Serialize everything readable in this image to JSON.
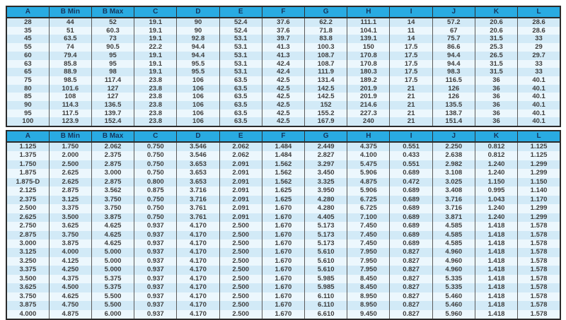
{
  "colors": {
    "header_bg": "#29abe2",
    "header_text": "#16365c",
    "row_odd": "#d2eaf7",
    "row_even": "#ecf7fd",
    "grid_line": "#5a5a5a",
    "outer_border": "#2b2b2b",
    "cell_text": "#3d3d3d",
    "page_bg": "#ffffff"
  },
  "metric_table": {
    "headers": [
      "A",
      "B Min",
      "B Max",
      "C",
      "D",
      "E",
      "F",
      "G",
      "H",
      "I",
      "J",
      "K",
      "L"
    ],
    "rows": [
      [
        "28",
        "44",
        "52",
        "19.1",
        "90",
        "52.4",
        "37.6",
        "62.2",
        "111.1",
        "14",
        "57.2",
        "20.6",
        "28.6"
      ],
      [
        "35",
        "51",
        "60.3",
        "19.1",
        "90",
        "52.4",
        "37.6",
        "71.8",
        "104.1",
        "11",
        "67",
        "20.6",
        "28.6"
      ],
      [
        "45",
        "63.5",
        "73",
        "19.1",
        "92.8",
        "53.1",
        "39.7",
        "83.8",
        "139.1",
        "14",
        "75.7",
        "31.5",
        "33"
      ],
      [
        "55",
        "74",
        "90.5",
        "22.2",
        "94.4",
        "53.1",
        "41.3",
        "100.3",
        "150",
        "17.5",
        "86.6",
        "25.3",
        "29"
      ],
      [
        "60",
        "79.4",
        "95",
        "19.1",
        "94.4",
        "53.1",
        "41.3",
        "108.7",
        "170.8",
        "17.5",
        "94.4",
        "26.5",
        "29.7"
      ],
      [
        "63",
        "85.8",
        "95",
        "19.1",
        "95.5",
        "53.1",
        "42.4",
        "108.7",
        "170.8",
        "17.5",
        "94.4",
        "31.5",
        "33"
      ],
      [
        "65",
        "88.9",
        "98",
        "19.1",
        "95.5",
        "53.1",
        "42.4",
        "111.9",
        "180.3",
        "17.5",
        "98.3",
        "31.5",
        "33"
      ],
      [
        "75",
        "98.5",
        "117.4",
        "23.8",
        "106",
        "63.5",
        "42.5",
        "131.4",
        "189.2",
        "17.5",
        "116.5",
        "36",
        "40.1"
      ],
      [
        "80",
        "101.6",
        "127",
        "23.8",
        "106",
        "63.5",
        "42.5",
        "142.5",
        "201.9",
        "21",
        "126",
        "36",
        "40.1"
      ],
      [
        "85",
        "108",
        "127",
        "23.8",
        "106",
        "63.5",
        "42.5",
        "142.5",
        "201.9",
        "21",
        "126",
        "36",
        "40.1"
      ],
      [
        "90",
        "114.3",
        "136.5",
        "23.8",
        "106",
        "63.5",
        "42.5",
        "152",
        "214.6",
        "21",
        "135.5",
        "36",
        "40.1"
      ],
      [
        "95",
        "117.5",
        "139.7",
        "23.8",
        "106",
        "63.5",
        "42.5",
        "155.2",
        "227.3",
        "21",
        "138.7",
        "36",
        "40.1"
      ],
      [
        "100",
        "123.9",
        "152.4",
        "23.8",
        "106",
        "63.5",
        "42.5",
        "167.9",
        "240",
        "21",
        "151.4",
        "36",
        "40.1"
      ]
    ]
  },
  "inch_table": {
    "headers": [
      "A",
      "B Min",
      "B Max",
      "C",
      "D",
      "E",
      "F",
      "G",
      "H",
      "I",
      "J",
      "K",
      "L"
    ],
    "rows": [
      [
        "1.125",
        "1.750",
        "2.062",
        "0.750",
        "3.546",
        "2.062",
        "1.484",
        "2.449",
        "4.375",
        "0.551",
        "2.250",
        "0.812",
        "1.125"
      ],
      [
        "1.375",
        "2.000",
        "2.375",
        "0.750",
        "3.546",
        "2.062",
        "1.484",
        "2.827",
        "4.100",
        "0.433",
        "2.638",
        "0.812",
        "1.125"
      ],
      [
        "1.750",
        "2.500",
        "2.875",
        "0.750",
        "3.653",
        "2.091",
        "1.562",
        "3.297",
        "5.475",
        "0.551",
        "2.982",
        "1.240",
        "1.299"
      ],
      [
        "1.875",
        "2.625",
        "3.000",
        "0.750",
        "3.653",
        "2.091",
        "1.562",
        "3.450",
        "5.906",
        "0.689",
        "3.108",
        "1.240",
        "1.299"
      ],
      [
        "1.875-D",
        "2.625",
        "2.875",
        "0.800",
        "3.653",
        "2.091",
        "1.562",
        "3.325",
        "4.875",
        "0.472",
        "3.025",
        "1.150",
        "1.150"
      ],
      [
        "2.125",
        "2.875",
        "3.562",
        "0.875",
        "3.716",
        "2.091",
        "1.625",
        "3.950",
        "5.906",
        "0.689",
        "3.408",
        "0.995",
        "1.140"
      ],
      [
        "2.375",
        "3.125",
        "3.750",
        "0.750",
        "3.716",
        "2.091",
        "1.625",
        "4.280",
        "6.725",
        "0.689",
        "3.716",
        "1.043",
        "1.170"
      ],
      [
        "2.500",
        "3.375",
        "3.750",
        "0.750",
        "3.761",
        "2.091",
        "1.670",
        "4.280",
        "6.725",
        "0.689",
        "3.716",
        "1.240",
        "1.299"
      ],
      [
        "2.625",
        "3.500",
        "3.875",
        "0.750",
        "3.761",
        "2.091",
        "1.670",
        "4.405",
        "7.100",
        "0.689",
        "3.871",
        "1.240",
        "1.299"
      ],
      [
        "2.750",
        "3.625",
        "4.625",
        "0.937",
        "4.170",
        "2.500",
        "1.670",
        "5.173",
        "7.450",
        "0.689",
        "4.585",
        "1.418",
        "1.578"
      ],
      [
        "2.875",
        "3.750",
        "4.625",
        "0.937",
        "4.170",
        "2.500",
        "1.670",
        "5.173",
        "7.450",
        "0.689",
        "4.585",
        "1.418",
        "1.578"
      ],
      [
        "3.000",
        "3.875",
        "4.625",
        "0.937",
        "4.170",
        "2.500",
        "1.670",
        "5.173",
        "7.450",
        "0.689",
        "4.585",
        "1.418",
        "1.578"
      ],
      [
        "3.125",
        "4.000",
        "5.000",
        "0.937",
        "4.170",
        "2.500",
        "1.670",
        "5.610",
        "7.950",
        "0.827",
        "4.960",
        "1.418",
        "1.578"
      ],
      [
        "3.250",
        "4.125",
        "5.000",
        "0.937",
        "4.170",
        "2.500",
        "1.670",
        "5.610",
        "7.950",
        "0.827",
        "4.960",
        "1.418",
        "1.578"
      ],
      [
        "3.375",
        "4.250",
        "5.000",
        "0.937",
        "4.170",
        "2.500",
        "1.670",
        "5.610",
        "7.950",
        "0.827",
        "4.960",
        "1.418",
        "1.578"
      ],
      [
        "3.500",
        "4.375",
        "5.375",
        "0.937",
        "4.170",
        "2.500",
        "1.670",
        "5.985",
        "8.450",
        "0.827",
        "5.335",
        "1.418",
        "1.578"
      ],
      [
        "3.625",
        "4.500",
        "5.375",
        "0.937",
        "4.170",
        "2.500",
        "1.670",
        "5.985",
        "8.450",
        "0.827",
        "5.335",
        "1.418",
        "1.578"
      ],
      [
        "3.750",
        "4.625",
        "5.500",
        "0.937",
        "4.170",
        "2.500",
        "1.670",
        "6.110",
        "8.950",
        "0.827",
        "5.460",
        "1.418",
        "1.578"
      ],
      [
        "3.875",
        "4.750",
        "5.500",
        "0.937",
        "4.170",
        "2.500",
        "1.670",
        "6.110",
        "8.950",
        "0.827",
        "5.460",
        "1.418",
        "1.578"
      ],
      [
        "4.000",
        "4.875",
        "6.000",
        "0.937",
        "4.170",
        "2.500",
        "1.670",
        "6.610",
        "9.450",
        "0.827",
        "5.960",
        "1.418",
        "1.578"
      ]
    ]
  }
}
